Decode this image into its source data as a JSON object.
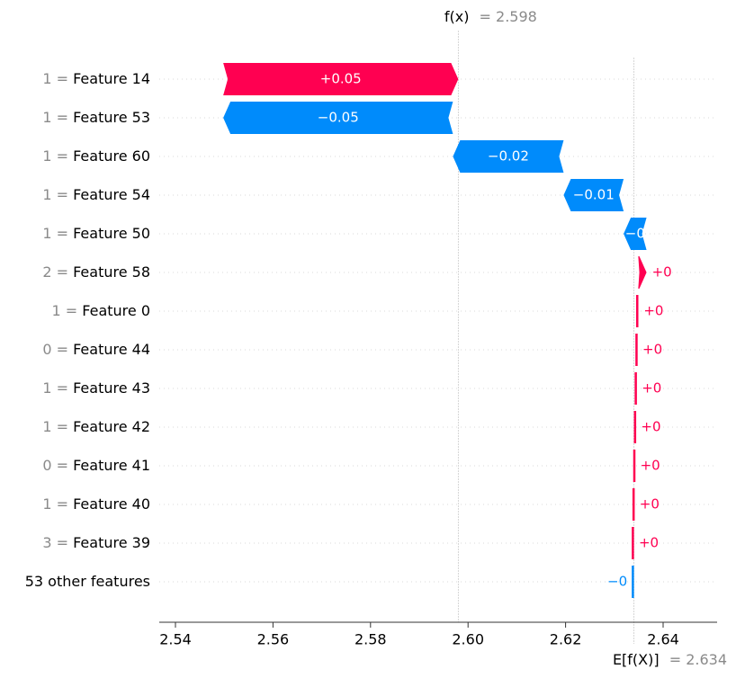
{
  "colors": {
    "positive": "#ff0051",
    "negative": "#008bfb",
    "grid": "#cccccc",
    "axis": "#333333",
    "muted": "#8a8a8a"
  },
  "chart_data": {
    "type": "waterfall",
    "fx": {
      "label": "f(x)",
      "value_text": "= 2.598",
      "value": 2.598
    },
    "efx": {
      "label": "E[f(X)]",
      "value_text": "= 2.634",
      "value": 2.634
    },
    "x_ticks": [
      "2.54",
      "2.56",
      "2.58",
      "2.60",
      "2.62",
      "2.64"
    ],
    "xlim": [
      2.535,
      2.6515
    ],
    "rows": [
      {
        "feature_value": "1",
        "feature": "Feature 14",
        "start": 2.5498,
        "end": 2.598,
        "label": "+0.05",
        "sign": "pos"
      },
      {
        "feature_value": "1",
        "feature": "Feature 53",
        "start": 2.5969,
        "end": 2.5498,
        "label": "−0.05",
        "sign": "neg"
      },
      {
        "feature_value": "1",
        "feature": "Feature 60",
        "start": 2.6196,
        "end": 2.5969,
        "label": "−0.02",
        "sign": "neg"
      },
      {
        "feature_value": "1",
        "feature": "Feature 54",
        "start": 2.6319,
        "end": 2.6196,
        "label": "−0.01",
        "sign": "neg"
      },
      {
        "feature_value": "1",
        "feature": "Feature 50",
        "start": 2.6366,
        "end": 2.6319,
        "label": "−0",
        "sign": "neg"
      },
      {
        "feature_value": "2",
        "feature": "Feature 58",
        "start": 2.6349,
        "end": 2.6366,
        "label": "+0",
        "sign": "pos"
      },
      {
        "feature_value": "1",
        "feature": "Feature 0",
        "start": 2.63465,
        "end": 2.6349,
        "label": "+0",
        "sign": "pos"
      },
      {
        "feature_value": "0",
        "feature": "Feature 44",
        "start": 2.6345,
        "end": 2.63465,
        "label": "+0",
        "sign": "pos"
      },
      {
        "feature_value": "1",
        "feature": "Feature 43",
        "start": 2.63435,
        "end": 2.6345,
        "label": "+0",
        "sign": "pos"
      },
      {
        "feature_value": "1",
        "feature": "Feature 42",
        "start": 2.6342,
        "end": 2.63435,
        "label": "+0",
        "sign": "pos"
      },
      {
        "feature_value": "0",
        "feature": "Feature 41",
        "start": 2.63405,
        "end": 2.6342,
        "label": "+0",
        "sign": "pos"
      },
      {
        "feature_value": "1",
        "feature": "Feature 40",
        "start": 2.6339,
        "end": 2.63405,
        "label": "+0",
        "sign": "pos"
      },
      {
        "feature_value": "3",
        "feature": "Feature 39",
        "start": 2.63375,
        "end": 2.6339,
        "label": "+0",
        "sign": "pos"
      },
      {
        "feature_value": "",
        "feature": "53 other features",
        "start": 2.634,
        "end": 2.63375,
        "label": "−0",
        "sign": "neg"
      }
    ]
  }
}
